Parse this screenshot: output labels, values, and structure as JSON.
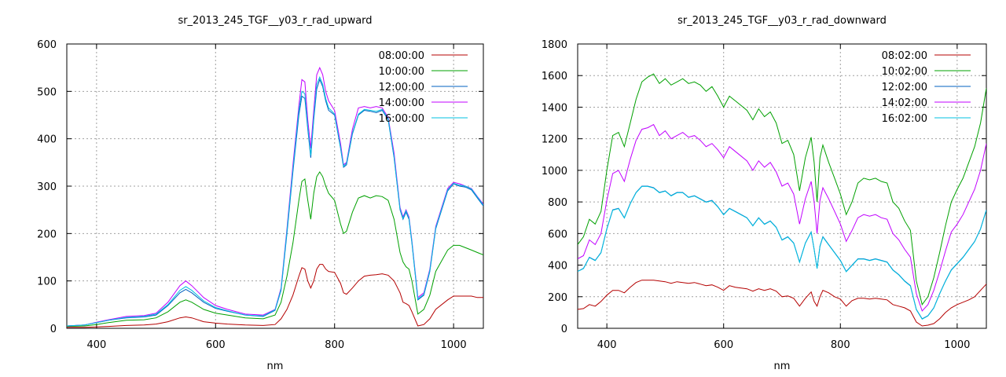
{
  "chart_data": [
    {
      "type": "line",
      "title": "sr_2013_245_TGF__y03_r_rad_upward",
      "xlabel": "nm",
      "ylabel": "",
      "xlim": [
        350,
        1050
      ],
      "ylim": [
        0,
        600
      ],
      "xticks": [
        400,
        600,
        800,
        1000
      ],
      "yticks": [
        0,
        100,
        200,
        300,
        400,
        500,
        600
      ],
      "grid": true,
      "legend_position": "top-right",
      "x": [
        350,
        380,
        400,
        420,
        450,
        480,
        500,
        520,
        540,
        550,
        560,
        580,
        600,
        620,
        650,
        680,
        700,
        710,
        720,
        730,
        740,
        745,
        750,
        755,
        760,
        765,
        770,
        775,
        780,
        785,
        790,
        800,
        810,
        815,
        820,
        830,
        840,
        850,
        860,
        870,
        880,
        890,
        900,
        910,
        915,
        920,
        925,
        930,
        940,
        950,
        960,
        970,
        990,
        1000,
        1010,
        1020,
        1030,
        1040,
        1050
      ],
      "series": [
        {
          "name": "08:00:00",
          "color": "#b40000",
          "values": [
            2,
            2,
            3,
            4,
            6,
            7,
            9,
            14,
            22,
            24,
            22,
            14,
            11,
            9,
            7,
            6,
            8,
            20,
            40,
            70,
            110,
            128,
            125,
            100,
            85,
            100,
            125,
            135,
            135,
            125,
            120,
            118,
            95,
            75,
            72,
            85,
            100,
            110,
            112,
            113,
            115,
            112,
            100,
            75,
            55,
            52,
            48,
            35,
            5,
            8,
            20,
            40,
            60,
            68,
            68,
            68,
            68,
            65,
            65
          ]
        },
        {
          "name": "10:00:00",
          "color": "#00a000",
          "values": [
            4,
            5,
            8,
            12,
            17,
            18,
            22,
            35,
            55,
            60,
            55,
            40,
            32,
            28,
            22,
            20,
            28,
            55,
            110,
            180,
            270,
            310,
            315,
            270,
            230,
            285,
            320,
            330,
            320,
            300,
            285,
            270,
            220,
            200,
            205,
            245,
            275,
            280,
            275,
            280,
            278,
            270,
            230,
            160,
            140,
            130,
            125,
            100,
            30,
            40,
            70,
            120,
            165,
            175,
            175,
            170,
            165,
            160,
            155
          ]
        },
        {
          "name": "12:00:00",
          "color": "#0060c0",
          "values": [
            5,
            7,
            12,
            17,
            22,
            24,
            28,
            48,
            75,
            82,
            75,
            55,
            42,
            36,
            28,
            25,
            38,
            80,
            200,
            330,
            450,
            490,
            485,
            420,
            360,
            440,
            505,
            525,
            510,
            480,
            460,
            450,
            380,
            340,
            345,
            410,
            450,
            460,
            458,
            455,
            460,
            440,
            360,
            250,
            230,
            245,
            230,
            180,
            60,
            70,
            120,
            210,
            290,
            305,
            300,
            298,
            292,
            275,
            258
          ]
        },
        {
          "name": "14:00:00",
          "color": "#c000ff",
          "values": [
            5,
            7,
            13,
            18,
            25,
            27,
            32,
            55,
            90,
            100,
            90,
            65,
            48,
            40,
            30,
            28,
            40,
            85,
            210,
            345,
            470,
            525,
            520,
            440,
            380,
            460,
            535,
            550,
            535,
            500,
            480,
            460,
            390,
            345,
            350,
            420,
            465,
            468,
            465,
            468,
            465,
            445,
            370,
            255,
            235,
            250,
            235,
            185,
            65,
            75,
            125,
            215,
            295,
            308,
            305,
            300,
            295,
            278,
            262
          ]
        },
        {
          "name": "16:00:00",
          "color": "#00c0e0",
          "values": [
            5,
            7,
            12,
            17,
            23,
            25,
            30,
            50,
            80,
            88,
            80,
            58,
            44,
            37,
            28,
            26,
            39,
            82,
            205,
            335,
            460,
            500,
            495,
            425,
            365,
            445,
            515,
            530,
            515,
            485,
            465,
            452,
            382,
            342,
            348,
            412,
            452,
            462,
            460,
            458,
            462,
            442,
            362,
            252,
            232,
            248,
            232,
            182,
            62,
            72,
            122,
            212,
            292,
            306,
            302,
            300,
            294,
            277,
            260
          ]
        }
      ]
    },
    {
      "type": "line",
      "title": "sr_2013_245_TGF__y03_r_rad_downward",
      "xlabel": "nm",
      "ylabel": "",
      "xlim": [
        350,
        1050
      ],
      "ylim": [
        0,
        1800
      ],
      "xticks": [
        400,
        600,
        800,
        1000
      ],
      "yticks": [
        0,
        200,
        400,
        600,
        800,
        1000,
        1200,
        1400,
        1600,
        1800
      ],
      "grid": true,
      "legend_position": "top-right",
      "x": [
        350,
        360,
        370,
        380,
        390,
        400,
        410,
        420,
        430,
        440,
        450,
        460,
        470,
        480,
        490,
        500,
        510,
        520,
        530,
        540,
        550,
        560,
        570,
        580,
        590,
        600,
        610,
        620,
        630,
        640,
        650,
        660,
        670,
        680,
        690,
        700,
        710,
        720,
        730,
        740,
        750,
        755,
        760,
        765,
        770,
        780,
        790,
        800,
        810,
        820,
        830,
        840,
        850,
        860,
        870,
        880,
        890,
        900,
        910,
        920,
        930,
        940,
        950,
        960,
        970,
        980,
        990,
        1000,
        1010,
        1020,
        1030,
        1040,
        1050
      ],
      "series": [
        {
          "name": "08:02:00",
          "color": "#b40000",
          "values": [
            120,
            125,
            150,
            140,
            170,
            210,
            240,
            240,
            225,
            260,
            290,
            305,
            305,
            305,
            300,
            295,
            285,
            295,
            290,
            285,
            290,
            280,
            270,
            275,
            260,
            240,
            270,
            260,
            255,
            250,
            235,
            250,
            240,
            250,
            235,
            200,
            205,
            190,
            140,
            190,
            230,
            170,
            140,
            200,
            240,
            225,
            200,
            185,
            140,
            175,
            190,
            190,
            185,
            190,
            185,
            180,
            150,
            140,
            130,
            110,
            40,
            15,
            20,
            30,
            60,
            100,
            130,
            150,
            165,
            180,
            200,
            240,
            280
          ]
        },
        {
          "name": "10:02:00",
          "color": "#00a000",
          "values": [
            530,
            580,
            690,
            660,
            740,
            1000,
            1220,
            1240,
            1150,
            1300,
            1450,
            1560,
            1590,
            1610,
            1550,
            1580,
            1540,
            1560,
            1580,
            1550,
            1560,
            1540,
            1500,
            1530,
            1470,
            1400,
            1470,
            1440,
            1410,
            1380,
            1320,
            1390,
            1340,
            1370,
            1300,
            1170,
            1190,
            1100,
            870,
            1080,
            1210,
            1050,
            800,
            1080,
            1160,
            1050,
            950,
            850,
            720,
            800,
            920,
            950,
            940,
            950,
            930,
            920,
            800,
            760,
            680,
            620,
            300,
            150,
            200,
            320,
            480,
            650,
            800,
            880,
            950,
            1050,
            1150,
            1300,
            1520
          ]
        },
        {
          "name": "12:02:00",
          "color": "#0060c0",
          "values": [
            360,
            380,
            450,
            430,
            480,
            630,
            750,
            760,
            700,
            790,
            860,
            900,
            900,
            890,
            860,
            870,
            840,
            860,
            860,
            830,
            840,
            820,
            800,
            810,
            770,
            720,
            760,
            740,
            720,
            700,
            650,
            700,
            660,
            680,
            640,
            560,
            580,
            540,
            420,
            540,
            610,
            500,
            380,
            520,
            580,
            530,
            480,
            430,
            360,
            400,
            440,
            440,
            430,
            440,
            430,
            420,
            370,
            340,
            300,
            270,
            120,
            60,
            80,
            130,
            220,
            300,
            370,
            410,
            450,
            500,
            550,
            630,
            750
          ]
        },
        {
          "name": "14:02:00",
          "color": "#c000ff",
          "values": [
            440,
            460,
            560,
            530,
            600,
            810,
            980,
            1000,
            930,
            1070,
            1190,
            1260,
            1270,
            1290,
            1220,
            1250,
            1200,
            1220,
            1240,
            1210,
            1220,
            1190,
            1150,
            1170,
            1130,
            1080,
            1150,
            1120,
            1090,
            1060,
            1000,
            1060,
            1020,
            1050,
            990,
            900,
            920,
            850,
            660,
            820,
            930,
            800,
            600,
            810,
            890,
            820,
            740,
            660,
            550,
            620,
            700,
            720,
            710,
            720,
            700,
            690,
            600,
            560,
            500,
            450,
            220,
            110,
            150,
            240,
            360,
            490,
            610,
            660,
            720,
            800,
            880,
            1000,
            1170
          ]
        },
        {
          "name": "16:02:00",
          "color": "#00c0e0",
          "values": [
            360,
            378,
            448,
            428,
            478,
            628,
            748,
            758,
            698,
            788,
            858,
            898,
            898,
            888,
            858,
            868,
            838,
            858,
            858,
            828,
            838,
            818,
            798,
            808,
            768,
            718,
            758,
            738,
            718,
            698,
            648,
            698,
            658,
            678,
            638,
            558,
            578,
            538,
            418,
            538,
            608,
            498,
            378,
            518,
            578,
            528,
            478,
            428,
            358,
            398,
            438,
            438,
            428,
            438,
            428,
            418,
            368,
            338,
            298,
            268,
            118,
            58,
            78,
            128,
            218,
            298,
            368,
            408,
            448,
            498,
            548,
            628,
            748
          ]
        }
      ]
    }
  ]
}
